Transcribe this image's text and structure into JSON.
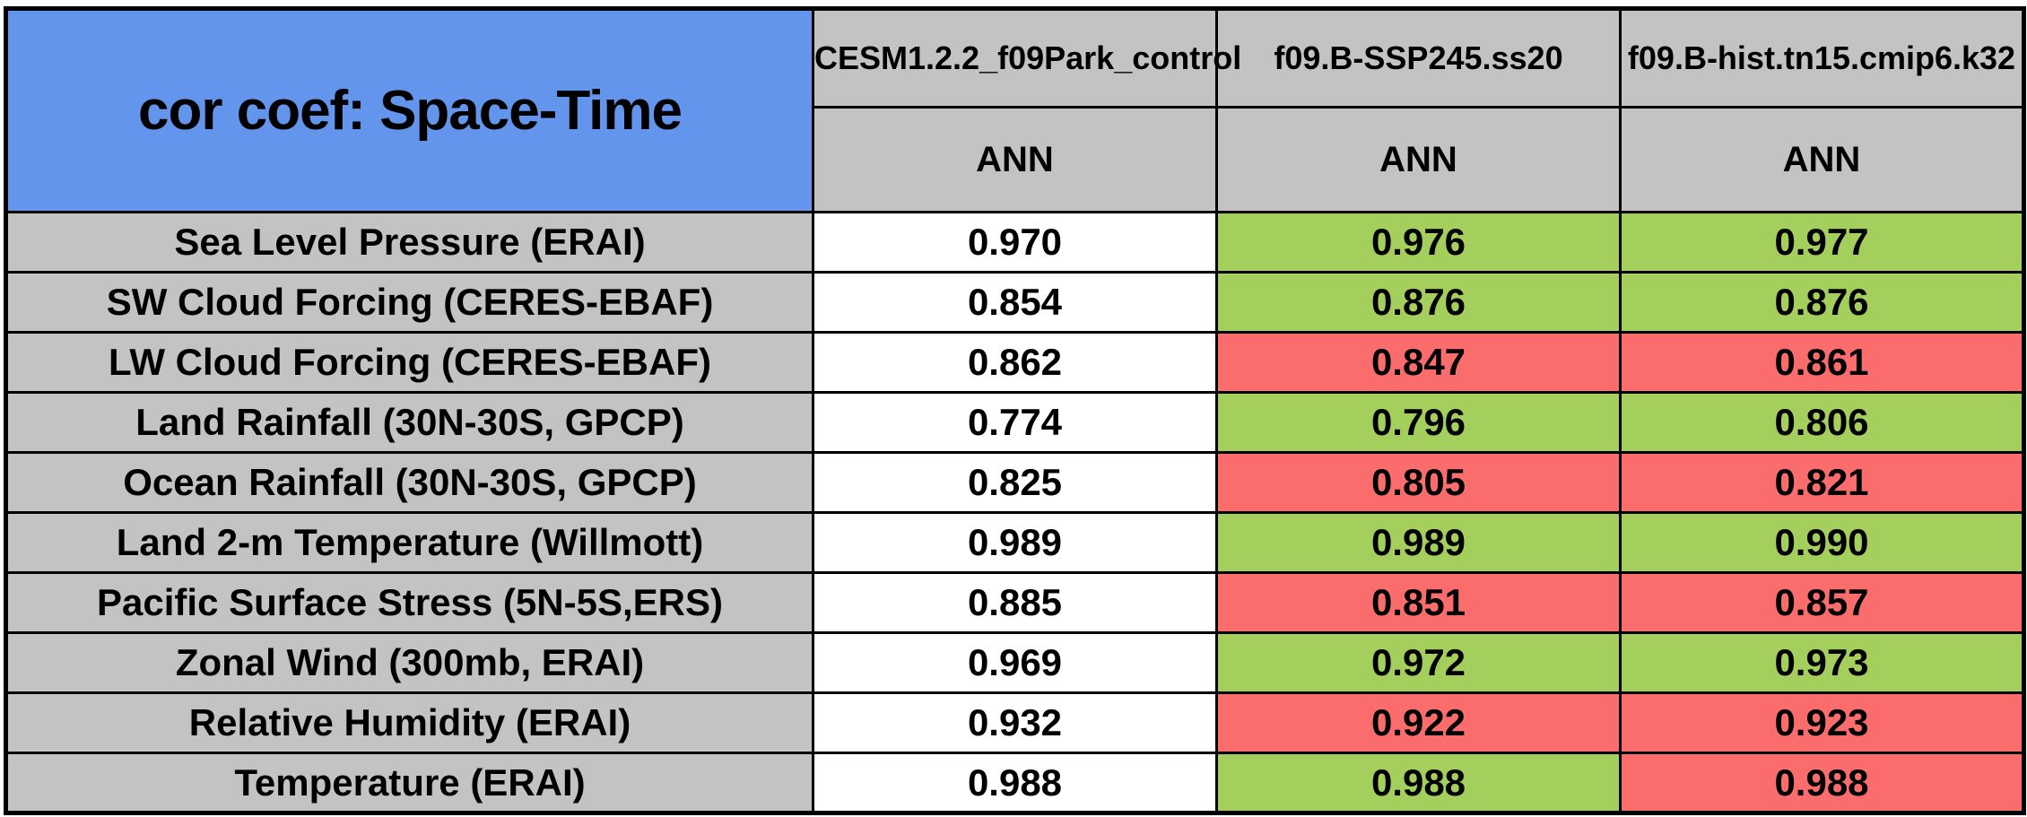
{
  "palette": {
    "blue": "#6495ed",
    "gray": "#c3c3c3",
    "white": "#ffffff",
    "green": "#a4cf5d",
    "red": "#fb6c6c",
    "border": "#000000"
  },
  "chart_data": {
    "type": "table",
    "title": "cor coef: Space-Time",
    "columns": [
      {
        "model": "CESM1.2.2_f09Park_control",
        "season": "ANN"
      },
      {
        "model": "f09.B-SSP245.ss20",
        "season": "ANN"
      },
      {
        "model": "f09.B-hist.tn15.cmip6.k32",
        "season": "ANN"
      }
    ],
    "rows": [
      {
        "label": "Sea Level Pressure (ERAI)",
        "values": [
          "0.970",
          "0.976",
          "0.977"
        ],
        "cell_colors": [
          "white",
          "green",
          "green"
        ]
      },
      {
        "label": "SW Cloud Forcing (CERES-EBAF)",
        "values": [
          "0.854",
          "0.876",
          "0.876"
        ],
        "cell_colors": [
          "white",
          "green",
          "green"
        ]
      },
      {
        "label": "LW Cloud Forcing (CERES-EBAF)",
        "values": [
          "0.862",
          "0.847",
          "0.861"
        ],
        "cell_colors": [
          "white",
          "red",
          "red"
        ]
      },
      {
        "label": "Land Rainfall (30N-30S, GPCP)",
        "values": [
          "0.774",
          "0.796",
          "0.806"
        ],
        "cell_colors": [
          "white",
          "green",
          "green"
        ]
      },
      {
        "label": "Ocean Rainfall (30N-30S, GPCP)",
        "values": [
          "0.825",
          "0.805",
          "0.821"
        ],
        "cell_colors": [
          "white",
          "red",
          "red"
        ]
      },
      {
        "label": "Land 2-m Temperature (Willmott)",
        "values": [
          "0.989",
          "0.989",
          "0.990"
        ],
        "cell_colors": [
          "white",
          "green",
          "green"
        ]
      },
      {
        "label": "Pacific Surface Stress (5N-5S,ERS)",
        "values": [
          "0.885",
          "0.851",
          "0.857"
        ],
        "cell_colors": [
          "white",
          "red",
          "red"
        ]
      },
      {
        "label": "Zonal Wind (300mb, ERAI)",
        "values": [
          "0.969",
          "0.972",
          "0.973"
        ],
        "cell_colors": [
          "white",
          "green",
          "green"
        ]
      },
      {
        "label": "Relative Humidity (ERAI)",
        "values": [
          "0.932",
          "0.922",
          "0.923"
        ],
        "cell_colors": [
          "white",
          "red",
          "red"
        ]
      },
      {
        "label": "Temperature (ERAI)",
        "values": [
          "0.988",
          "0.988",
          "0.988"
        ],
        "cell_colors": [
          "white",
          "green",
          "red"
        ]
      }
    ]
  }
}
